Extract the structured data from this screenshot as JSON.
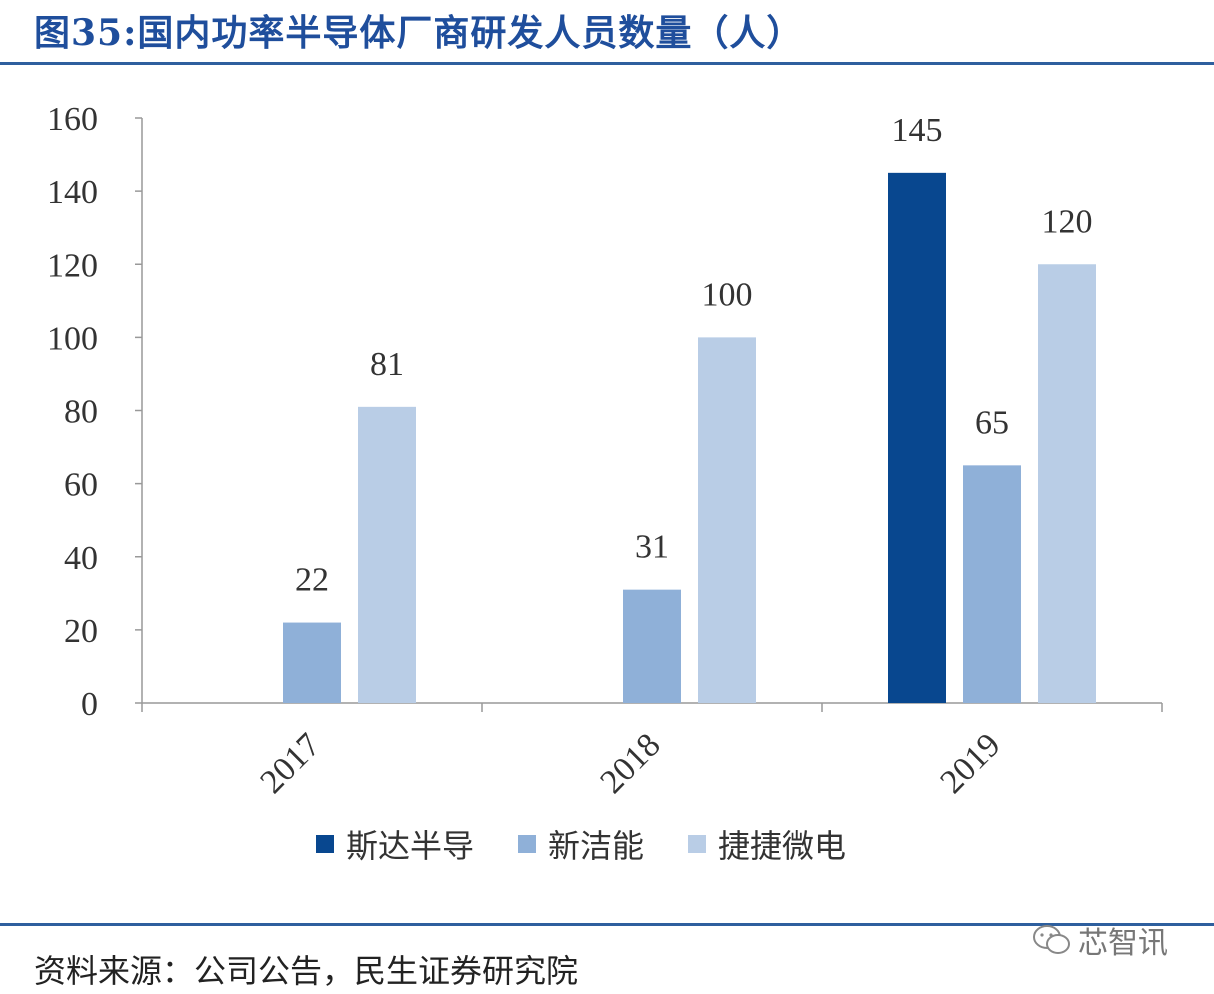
{
  "title": "图35:国内功率半导体厂商研发人员数量（人）",
  "source": "资料来源：公司公告，民生证券研究院",
  "watermark": "芯智讯",
  "chart_data": {
    "type": "bar",
    "title": "图35:国内功率半导体厂商研发人员数量（人）",
    "categories": [
      "2017",
      "2018",
      "2019"
    ],
    "series": [
      {
        "name": "斯达半导",
        "values": [
          null,
          null,
          145
        ],
        "color": "#08478f"
      },
      {
        "name": "新洁能",
        "values": [
          22,
          31,
          65
        ],
        "color": "#8fb0d8"
      },
      {
        "name": "捷捷微电",
        "values": [
          81,
          100,
          120
        ],
        "color": "#b9cde6"
      }
    ],
    "yticks": [
      "0",
      "20",
      "40",
      "60",
      "80",
      "100",
      "120",
      "140",
      "160"
    ],
    "ylim": [
      0,
      160
    ],
    "xlabel": "",
    "ylabel": "",
    "grid": false,
    "legend_position": "bottom"
  }
}
